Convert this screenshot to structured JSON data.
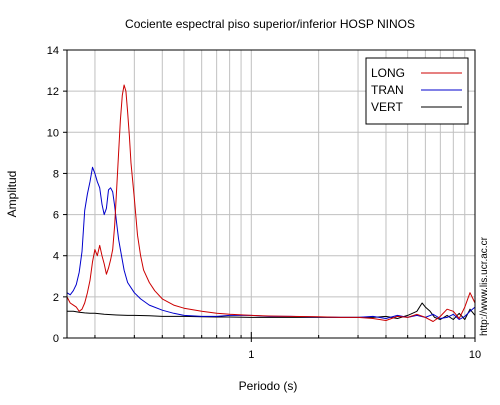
{
  "chart_data": {
    "type": "line",
    "title": "Cociente espectral piso superior/inferior  HOSP NINOS",
    "xlabel": "Periodo (s)",
    "ylabel": "Amplitud",
    "side_text": "http://www.lis.ucr.ac.cr",
    "x_scale": "log",
    "xlim": [
      0.15,
      10
    ],
    "ylim": [
      0,
      14
    ],
    "grid": true,
    "legend_position": "top-right",
    "x_ticks": [
      {
        "value": 1,
        "label": "1"
      },
      {
        "value": 10,
        "label": "10"
      }
    ],
    "y_ticks": [
      0,
      2,
      4,
      6,
      8,
      10,
      12,
      14
    ],
    "series": [
      {
        "name": "LONG",
        "color": "#cc0000",
        "x": [
          0.15,
          0.155,
          0.16,
          0.165,
          0.17,
          0.175,
          0.18,
          0.185,
          0.19,
          0.195,
          0.2,
          0.205,
          0.21,
          0.215,
          0.22,
          0.225,
          0.23,
          0.235,
          0.24,
          0.245,
          0.25,
          0.255,
          0.26,
          0.265,
          0.27,
          0.275,
          0.28,
          0.285,
          0.29,
          0.3,
          0.31,
          0.32,
          0.33,
          0.35,
          0.37,
          0.4,
          0.45,
          0.5,
          0.6,
          0.7,
          0.8,
          1.0,
          1.2,
          1.5,
          2.0,
          2.5,
          3.0,
          3.5,
          4.0,
          4.5,
          5.0,
          5.5,
          6.0,
          6.5,
          7.0,
          7.5,
          8.0,
          8.5,
          9.0,
          9.5,
          10.0
        ],
        "y": [
          2.0,
          1.7,
          1.6,
          1.5,
          1.3,
          1.4,
          1.7,
          2.2,
          2.8,
          3.7,
          4.3,
          4.0,
          4.5,
          4.0,
          3.6,
          3.1,
          3.4,
          3.8,
          4.3,
          5.5,
          7.2,
          9.0,
          10.6,
          11.8,
          12.3,
          12.0,
          11.0,
          9.8,
          8.5,
          6.8,
          5.0,
          4.0,
          3.3,
          2.7,
          2.3,
          1.9,
          1.6,
          1.45,
          1.3,
          1.2,
          1.15,
          1.1,
          1.07,
          1.05,
          1.03,
          1.0,
          1.0,
          0.95,
          0.85,
          1.05,
          1.0,
          1.15,
          1.0,
          0.8,
          1.05,
          1.4,
          1.3,
          0.95,
          1.5,
          2.2,
          1.7
        ]
      },
      {
        "name": "TRAN",
        "color": "#0000cc",
        "x": [
          0.15,
          0.155,
          0.16,
          0.165,
          0.17,
          0.175,
          0.18,
          0.185,
          0.19,
          0.195,
          0.2,
          0.205,
          0.21,
          0.215,
          0.22,
          0.225,
          0.23,
          0.235,
          0.24,
          0.245,
          0.25,
          0.255,
          0.26,
          0.27,
          0.28,
          0.3,
          0.32,
          0.35,
          0.4,
          0.45,
          0.5,
          0.6,
          0.7,
          0.8,
          1.0,
          1.2,
          1.5,
          2.0,
          2.5,
          3.0,
          3.5,
          4.0,
          4.5,
          5.0,
          5.5,
          6.0,
          6.5,
          7.0,
          7.5,
          8.0,
          8.5,
          9.0,
          9.5,
          10.0
        ],
        "y": [
          2.2,
          2.1,
          2.3,
          2.6,
          3.2,
          4.2,
          6.2,
          7.0,
          7.6,
          8.3,
          8.0,
          7.6,
          7.3,
          6.5,
          6.0,
          6.3,
          7.2,
          7.3,
          7.1,
          6.4,
          5.6,
          4.8,
          4.3,
          3.3,
          2.7,
          2.2,
          1.9,
          1.6,
          1.35,
          1.2,
          1.1,
          1.05,
          1.05,
          1.1,
          1.1,
          1.05,
          1.05,
          1.02,
          1.0,
          1.0,
          1.05,
          0.95,
          1.1,
          1.0,
          1.1,
          1.0,
          1.15,
          0.95,
          1.0,
          1.15,
          0.9,
          1.05,
          1.3,
          1.5
        ]
      },
      {
        "name": "VERT",
        "color": "#000000",
        "x": [
          0.15,
          0.16,
          0.17,
          0.18,
          0.19,
          0.2,
          0.22,
          0.25,
          0.28,
          0.3,
          0.35,
          0.4,
          0.5,
          0.6,
          0.7,
          0.8,
          1.0,
          1.2,
          1.5,
          2.0,
          2.5,
          3.0,
          3.5,
          4.0,
          4.5,
          5.0,
          5.5,
          5.8,
          6.0,
          6.3,
          6.6,
          7.0,
          7.5,
          8.0,
          8.5,
          9.0,
          9.5,
          10.0
        ],
        "y": [
          1.3,
          1.3,
          1.25,
          1.22,
          1.2,
          1.2,
          1.15,
          1.12,
          1.1,
          1.1,
          1.08,
          1.05,
          1.05,
          1.03,
          1.02,
          1.02,
          1.0,
          1.0,
          1.0,
          1.0,
          1.0,
          1.0,
          1.0,
          1.05,
          0.95,
          1.1,
          1.3,
          1.7,
          1.5,
          1.3,
          1.0,
          0.9,
          1.1,
          0.9,
          1.2,
          0.9,
          1.4,
          1.1
        ]
      }
    ]
  }
}
